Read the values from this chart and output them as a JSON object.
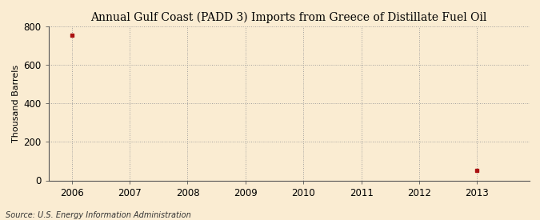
{
  "title": "Annual Gulf Coast (PADD 3) Imports from Greece of Distillate Fuel Oil",
  "ylabel": "Thousand Barrels",
  "source": "Source: U.S. Energy Information Administration",
  "years": [
    2006,
    2013
  ],
  "values": [
    755,
    50
  ],
  "ylim": [
    0,
    800
  ],
  "yticks": [
    0,
    200,
    400,
    600,
    800
  ],
  "xlim": [
    2005.6,
    2013.9
  ],
  "xticks": [
    2006,
    2007,
    2008,
    2009,
    2010,
    2011,
    2012,
    2013
  ],
  "bg_color": "#faecd2",
  "marker_color": "#aa1111",
  "grid_color": "#999999",
  "title_fontsize": 10,
  "label_fontsize": 8,
  "tick_fontsize": 8.5,
  "source_fontsize": 7
}
